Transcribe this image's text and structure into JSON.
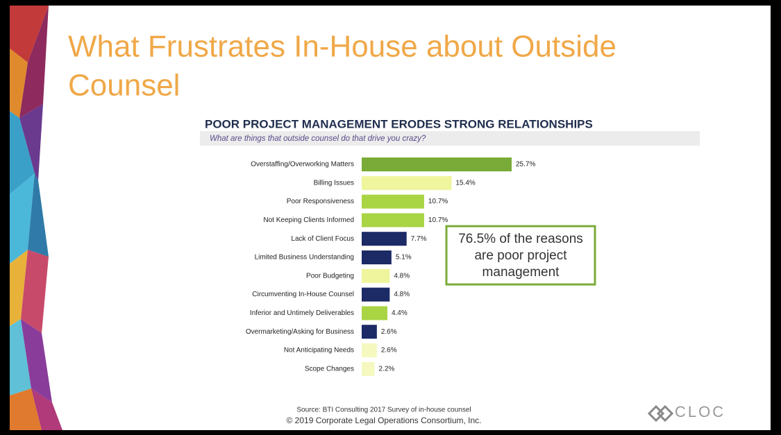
{
  "slide": {
    "title_lines": [
      "What Frustrates In-House about Outside",
      "Counsel"
    ],
    "callout_lines": [
      "76.5% of the reasons",
      "are poor project",
      "management"
    ],
    "source": "Source: BTI Consulting 2017 Survey of in-house counsel",
    "copyright": "© 2019 Corporate Legal Operations Consortium, Inc.",
    "logo": "CLOC"
  },
  "chart_data": {
    "type": "bar",
    "orientation": "horizontal",
    "title": "POOR PROJECT MANAGEMENT ERODES STRONG RELATIONSHIPS",
    "subtitle": "What are things that outside counsel do that drive you crazy?",
    "categories": [
      "Overstaffing/Overworking Matters",
      "Billing Issues",
      "Poor Responsiveness",
      "Not Keeping Clients Informed",
      "Lack of Client Focus",
      "Limited Business Understanding",
      "Poor Budgeting",
      "Circumventing In-House Counsel",
      "Inferior and Untimely Deliverables",
      "Overmarketing/Asking for Business",
      "Not Anticipating Needs",
      "Scope Changes"
    ],
    "values": [
      25.7,
      15.4,
      10.7,
      10.7,
      7.7,
      5.1,
      4.8,
      4.8,
      4.4,
      2.6,
      2.6,
      2.2
    ],
    "value_labels": [
      "25.7%",
      "15.4%",
      "10.7%",
      "10.7%",
      "7.7%",
      "5.1%",
      "4.8%",
      "4.8%",
      "4.4%",
      "2.6%",
      "2.6%",
      "2.2%"
    ],
    "colors": [
      "#7aab38",
      "#eef59c",
      "#a9d443",
      "#a9d443",
      "#1c2a66",
      "#1c2a66",
      "#eef59c",
      "#1c2a66",
      "#a9d443",
      "#1c2a66",
      "#f5f8bf",
      "#f5f8bf"
    ]
  }
}
